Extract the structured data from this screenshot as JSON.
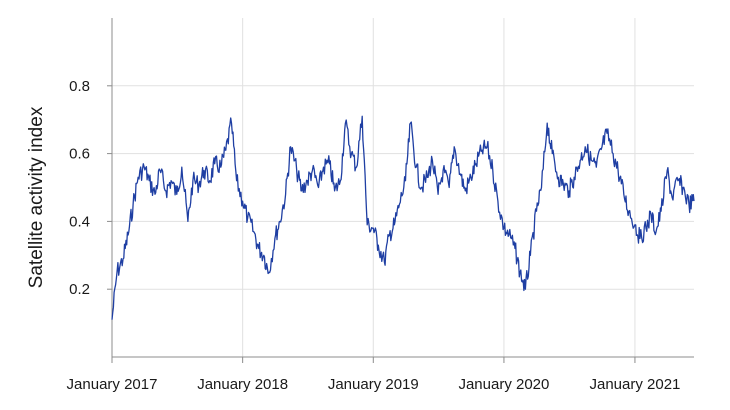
{
  "chart_data": {
    "type": "line",
    "title": "",
    "xlabel": "",
    "ylabel": "Satellite activity index",
    "x_tick_labels": [
      "January 2017",
      "January 2018",
      "January 2019",
      "January 2020",
      "January 2021"
    ],
    "x_tick_dates": [
      "2017-01-01",
      "2018-01-01",
      "2019-01-01",
      "2020-01-01",
      "2021-01-01"
    ],
    "xlim": [
      "2017-01-01",
      "2021-06-15"
    ],
    "y_tick_values": [
      0.2,
      0.4,
      0.6,
      0.8
    ],
    "y_tick_labels": [
      "0.2",
      "0.4",
      "0.6",
      "0.8"
    ],
    "ylim": [
      0.0,
      1.0
    ],
    "grid": "vertical and horizontal",
    "legend": "none",
    "colors": {
      "series": "#1f3fa3",
      "grid": "#e1e1e1",
      "axis": "#8c8c8c"
    },
    "series": [
      {
        "x": [
          "2017-01-01",
          "2017-01-15",
          "2017-02-01",
          "2017-02-15",
          "2017-03-01",
          "2017-03-15",
          "2017-04-01",
          "2017-04-15",
          "2017-05-01",
          "2017-05-15",
          "2017-06-01",
          "2017-06-15",
          "2017-07-01",
          "2017-07-15",
          "2017-08-01",
          "2017-08-15",
          "2017-09-01",
          "2017-09-15",
          "2017-10-01",
          "2017-10-15",
          "2017-11-01",
          "2017-11-15",
          "2017-12-01",
          "2017-12-15",
          "2018-01-01",
          "2018-01-15",
          "2018-02-01",
          "2018-02-15",
          "2018-03-01",
          "2018-03-15",
          "2018-04-01",
          "2018-04-15",
          "2018-05-01",
          "2018-05-15",
          "2018-06-01",
          "2018-06-15",
          "2018-07-01",
          "2018-07-15",
          "2018-08-01",
          "2018-08-15",
          "2018-09-01",
          "2018-09-15",
          "2018-10-01",
          "2018-10-15",
          "2018-11-01",
          "2018-11-15",
          "2018-12-01",
          "2018-12-15",
          "2019-01-01",
          "2019-01-15",
          "2019-02-01",
          "2019-02-15",
          "2019-03-01",
          "2019-03-15",
          "2019-04-01",
          "2019-04-15",
          "2019-05-01",
          "2019-05-15",
          "2019-06-01",
          "2019-06-15",
          "2019-07-01",
          "2019-07-15",
          "2019-08-01",
          "2019-08-15",
          "2019-09-01",
          "2019-09-15",
          "2019-10-01",
          "2019-10-15",
          "2019-11-01",
          "2019-11-15",
          "2019-12-01",
          "2019-12-15",
          "2020-01-01",
          "2020-01-15",
          "2020-02-01",
          "2020-02-15",
          "2020-03-01",
          "2020-03-15",
          "2020-04-01",
          "2020-04-15",
          "2020-05-01",
          "2020-05-15",
          "2020-06-01",
          "2020-06-15",
          "2020-07-01",
          "2020-07-15",
          "2020-08-01",
          "2020-08-15",
          "2020-09-01",
          "2020-09-15",
          "2020-10-01",
          "2020-10-15",
          "2020-11-01",
          "2020-11-15",
          "2020-12-01",
          "2020-12-15",
          "2021-01-01",
          "2021-01-15",
          "2021-02-01",
          "2021-02-15",
          "2021-03-01",
          "2021-03-15",
          "2021-04-01",
          "2021-04-15",
          "2021-05-01",
          "2021-05-15",
          "2021-06-01",
          "2021-06-15"
        ],
        "y": [
          0.11,
          0.25,
          0.29,
          0.36,
          0.45,
          0.53,
          0.56,
          0.52,
          0.48,
          0.55,
          0.49,
          0.52,
          0.48,
          0.56,
          0.4,
          0.52,
          0.51,
          0.55,
          0.52,
          0.57,
          0.56,
          0.61,
          0.69,
          0.52,
          0.46,
          0.41,
          0.37,
          0.32,
          0.3,
          0.25,
          0.35,
          0.4,
          0.48,
          0.62,
          0.55,
          0.49,
          0.52,
          0.55,
          0.5,
          0.56,
          0.57,
          0.49,
          0.52,
          0.69,
          0.6,
          0.56,
          0.71,
          0.39,
          0.38,
          0.33,
          0.28,
          0.36,
          0.39,
          0.45,
          0.52,
          0.69,
          0.56,
          0.5,
          0.53,
          0.58,
          0.48,
          0.55,
          0.5,
          0.62,
          0.54,
          0.49,
          0.53,
          0.57,
          0.61,
          0.62,
          0.55,
          0.46,
          0.38,
          0.36,
          0.32,
          0.25,
          0.2,
          0.3,
          0.43,
          0.5,
          0.69,
          0.6,
          0.53,
          0.51,
          0.49,
          0.53,
          0.58,
          0.62,
          0.58,
          0.56,
          0.62,
          0.66,
          0.6,
          0.55,
          0.48,
          0.43,
          0.39,
          0.35,
          0.38,
          0.42,
          0.37,
          0.43,
          0.55,
          0.47,
          0.52,
          0.5,
          0.45,
          0.46
        ]
      }
    ]
  }
}
